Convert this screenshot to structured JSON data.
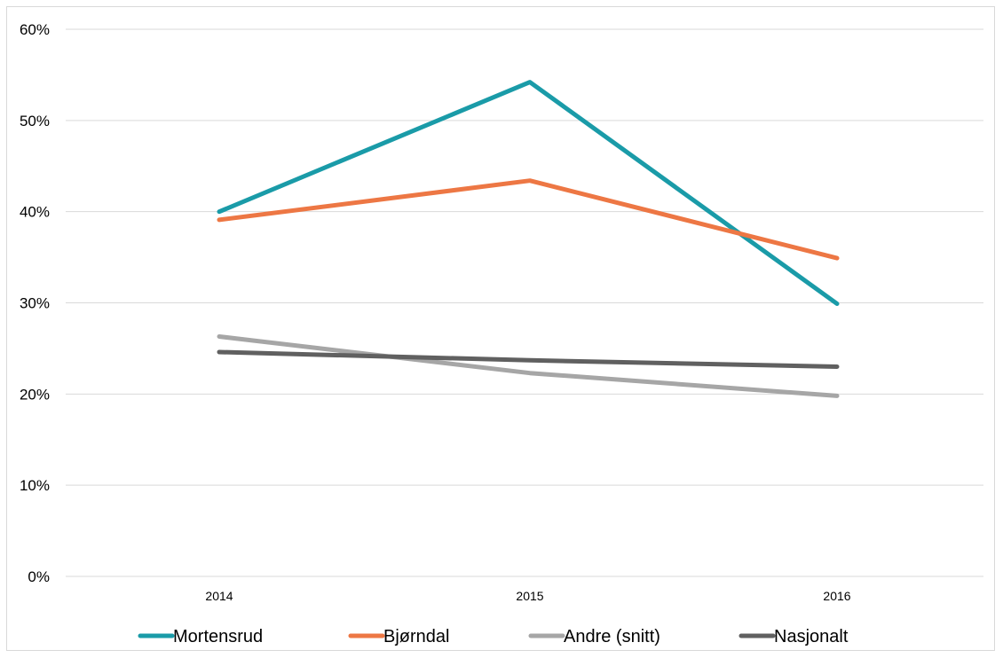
{
  "chart_data": {
    "type": "line",
    "title": "",
    "xlabel": "",
    "ylabel": "",
    "categories": [
      "2014",
      "2015",
      "2016"
    ],
    "ylim": [
      0,
      60
    ],
    "yticks": [
      0,
      10,
      20,
      30,
      40,
      50,
      60
    ],
    "ytick_labels": [
      "0%",
      "10%",
      "20%",
      "30%",
      "40%",
      "50%",
      "60%"
    ],
    "grid": true,
    "legend_position": "bottom",
    "series": [
      {
        "name": "Mortensrud",
        "color": "#1a9ba8",
        "values": [
          40.0,
          54.2,
          29.9
        ]
      },
      {
        "name": "Bjørndal",
        "color": "#ed7744",
        "values": [
          39.1,
          43.4,
          34.9
        ]
      },
      {
        "name": "Andre (snitt)",
        "color": "#a6a6a6",
        "values": [
          26.3,
          22.3,
          19.8
        ]
      },
      {
        "name": "Nasjonalt",
        "color": "#606060",
        "values": [
          24.6,
          23.7,
          23.0
        ]
      }
    ]
  }
}
